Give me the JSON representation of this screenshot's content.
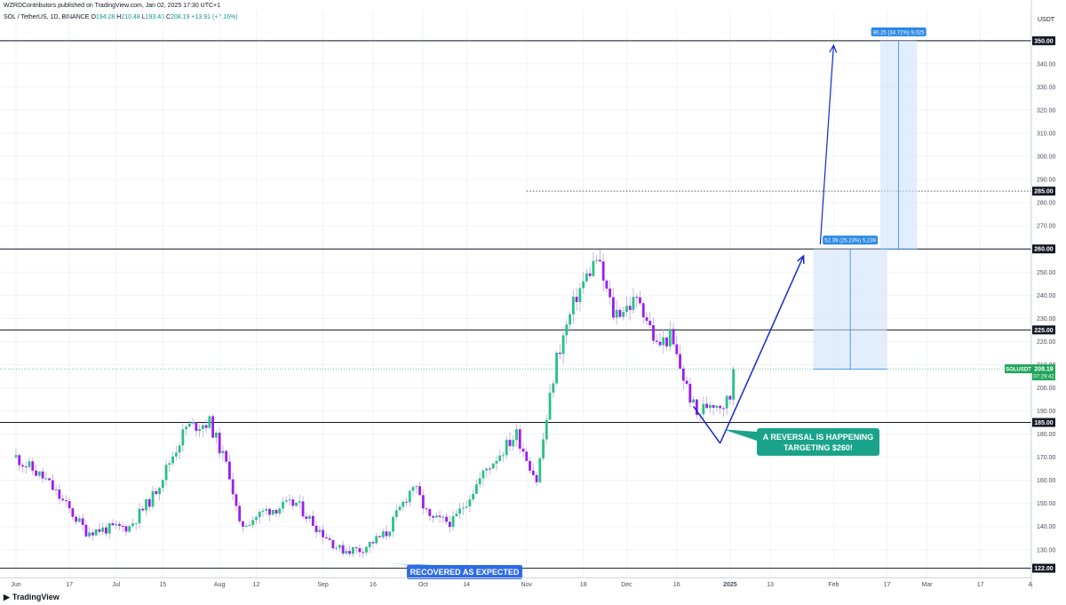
{
  "header": {
    "published_text": "WZRDContributors published on TradingView.com, Jan 02, 2025 17:30 UTC+1",
    "symbol_text": "SOL / TetherUS, 1D, BINANCE",
    "ohlc": {
      "o_label": "O",
      "o_value": "194.28",
      "h_label": "H",
      "h_value": "210.48",
      "l_label": "L",
      "l_value": "193.43",
      "c_label": "C",
      "c_value": "208.19",
      "change": "+13.91 (+7.16%)"
    }
  },
  "footer": {
    "logo_text": "TradingView"
  },
  "colors": {
    "bull": "#26c281",
    "bear": "#9b1bf0",
    "arrow": "#1428d2",
    "callout_teal": "#1aa38a",
    "callout_blue": "#2e6be6",
    "range_box": "#cfe3fb",
    "range_label": "#2d89e6",
    "current_price": "#1fa55a"
  },
  "chart_data": {
    "type": "candlestick",
    "symbol": "SOL / TetherUS, 1D, BINANCE",
    "y_axis": {
      "unit_label": "USDT",
      "range": [
        118,
        363
      ],
      "ticks": [
        130,
        140,
        150,
        160,
        170,
        180,
        190,
        200,
        210,
        220,
        230,
        240,
        250,
        260,
        270,
        280,
        290,
        300,
        310,
        320,
        330,
        340,
        350
      ]
    },
    "x_axis": {
      "range": [
        "2024-06-01",
        "2025-04-01"
      ],
      "ticks": [
        {
          "date": "2024-06-01",
          "label": "Jun"
        },
        {
          "date": "2024-06-17",
          "label": "17"
        },
        {
          "date": "2024-07-01",
          "label": "Jul"
        },
        {
          "date": "2024-07-15",
          "label": "15"
        },
        {
          "date": "2024-08-01",
          "label": "Aug"
        },
        {
          "date": "2024-08-12",
          "label": "12"
        },
        {
          "date": "2024-09-01",
          "label": "Sep"
        },
        {
          "date": "2024-09-16",
          "label": "16"
        },
        {
          "date": "2024-10-01",
          "label": "Oct"
        },
        {
          "date": "2024-10-14",
          "label": "14"
        },
        {
          "date": "2024-11-01",
          "label": "Nov"
        },
        {
          "date": "2024-11-18",
          "label": "18"
        },
        {
          "date": "2024-12-01",
          "label": "Dec"
        },
        {
          "date": "2024-12-16",
          "label": "16"
        },
        {
          "date": "2025-01-01",
          "label": "2025"
        },
        {
          "date": "2025-01-13",
          "label": "13"
        },
        {
          "date": "2025-02-01",
          "label": "Feb"
        },
        {
          "date": "2025-02-17",
          "label": "17"
        },
        {
          "date": "2025-03-01",
          "label": "Mar"
        },
        {
          "date": "2025-03-17",
          "label": "17"
        },
        {
          "date": "2025-04-01",
          "label": "A"
        }
      ]
    },
    "horizontal_levels": [
      {
        "value": 350,
        "label": "350.00",
        "style": "solid"
      },
      {
        "value": 285,
        "label": "285.00",
        "style": "dotted",
        "start_date": "2024-11-01"
      },
      {
        "value": 260,
        "label": "260.00",
        "style": "solid"
      },
      {
        "value": 225,
        "label": "225.00",
        "style": "solid"
      },
      {
        "value": 185,
        "label": "185.00",
        "style": "solid"
      },
      {
        "value": 122,
        "label": "122.00",
        "style": "solid"
      }
    ],
    "current_price": {
      "symbol_label": "SOLUSDT",
      "value": 208.19,
      "price_label": "208.19",
      "countdown": "07:29:42"
    },
    "anchor_points": [
      {
        "date": "2024-06-01",
        "value": 170
      },
      {
        "date": "2024-06-10",
        "value": 160
      },
      {
        "date": "2024-06-22",
        "value": 138
      },
      {
        "date": "2024-07-05",
        "value": 140
      },
      {
        "date": "2024-07-12",
        "value": 153
      },
      {
        "date": "2024-07-22",
        "value": 183
      },
      {
        "date": "2024-07-29",
        "value": 185
      },
      {
        "date": "2024-08-04",
        "value": 163
      },
      {
        "date": "2024-08-07",
        "value": 140
      },
      {
        "date": "2024-08-15",
        "value": 147
      },
      {
        "date": "2024-08-24",
        "value": 150
      },
      {
        "date": "2024-08-30",
        "value": 140
      },
      {
        "date": "2024-09-06",
        "value": 130
      },
      {
        "date": "2024-09-12",
        "value": 130
      },
      {
        "date": "2024-09-20",
        "value": 137
      },
      {
        "date": "2024-09-28",
        "value": 158
      },
      {
        "date": "2024-10-03",
        "value": 143
      },
      {
        "date": "2024-10-10",
        "value": 142
      },
      {
        "date": "2024-10-20",
        "value": 165
      },
      {
        "date": "2024-10-29",
        "value": 180
      },
      {
        "date": "2024-11-04",
        "value": 160
      },
      {
        "date": "2024-11-10",
        "value": 213
      },
      {
        "date": "2024-11-16",
        "value": 240
      },
      {
        "date": "2024-11-22",
        "value": 256
      },
      {
        "date": "2024-11-27",
        "value": 232
      },
      {
        "date": "2024-12-05",
        "value": 238
      },
      {
        "date": "2024-12-10",
        "value": 218
      },
      {
        "date": "2024-12-14",
        "value": 222
      },
      {
        "date": "2024-12-19",
        "value": 200
      },
      {
        "date": "2024-12-22",
        "value": 188
      },
      {
        "date": "2024-12-26",
        "value": 194
      },
      {
        "date": "2024-12-30",
        "value": 193
      },
      {
        "date": "2025-01-01",
        "value": 196
      },
      {
        "date": "2025-01-02",
        "value": 208
      }
    ],
    "annotations": [
      {
        "kind": "callout",
        "text": "RECOVERED AS EXPECTED",
        "color": "callout_blue"
      },
      {
        "kind": "callout",
        "text_line1": "A REVERSAL IS HAPPENING",
        "text_line2": "TARGETING $260!",
        "color": "callout_teal"
      },
      {
        "kind": "range",
        "label": "52.39 (25.23%) 5,239",
        "from": 208,
        "to": 260
      },
      {
        "kind": "range",
        "label": "90.25 (34.72%) 9,025",
        "from": 260,
        "to": 350
      }
    ]
  }
}
